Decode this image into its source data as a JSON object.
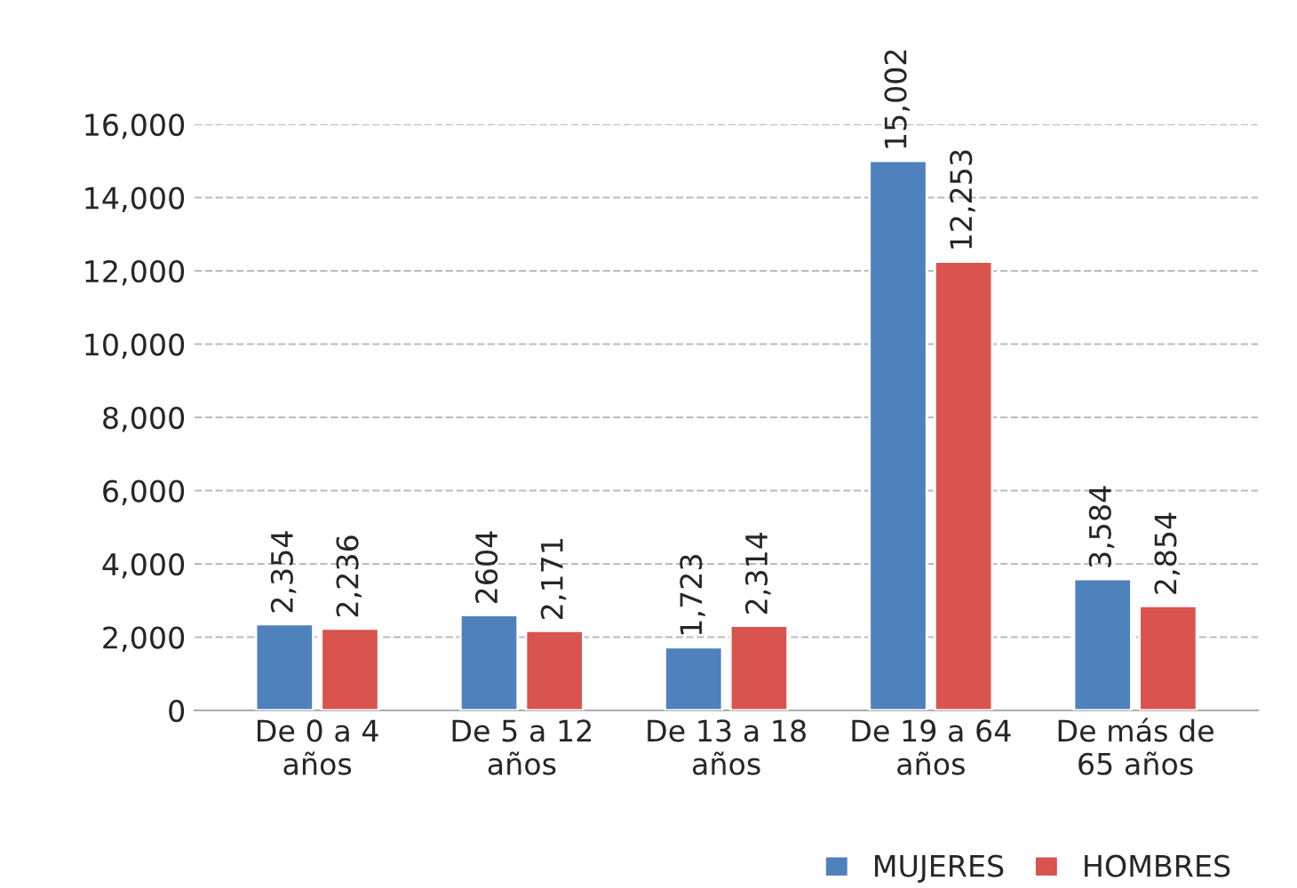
{
  "chart_data": {
    "type": "bar",
    "categories": [
      "De 0 a 4\naños",
      "De 5 a 12\naños",
      "De 13 a 18\naños",
      "De 19 a 64\naños",
      "De más de\n65 años"
    ],
    "series": [
      {
        "name": "MUJERES",
        "color": "#4f81bd",
        "values": [
          2354,
          2604,
          1723,
          15002,
          3584
        ],
        "value_labels": [
          "2,354",
          "2604",
          "1,723",
          "15,002",
          "3,584"
        ]
      },
      {
        "name": "HOMBRES",
        "color": "#d9534f",
        "values": [
          2236,
          2171,
          2314,
          12253,
          2854
        ],
        "value_labels": [
          "2,236",
          "2,171",
          "2,314",
          "12,253",
          "2,854"
        ]
      }
    ],
    "ylim": [
      0,
      16000
    ],
    "yticks": [
      {
        "value": 0,
        "label": "0"
      },
      {
        "value": 2000,
        "label": "2,000"
      },
      {
        "value": 4000,
        "label": "4,000"
      },
      {
        "value": 6000,
        "label": "6,000"
      },
      {
        "value": 8000,
        "label": "8,000"
      },
      {
        "value": 10000,
        "label": "10,000"
      },
      {
        "value": 12000,
        "label": "12,000"
      },
      {
        "value": 14000,
        "label": "14,000"
      },
      {
        "value": 16000,
        "label": "16,000"
      }
    ],
    "grid": "y",
    "legend": "bottom right"
  }
}
